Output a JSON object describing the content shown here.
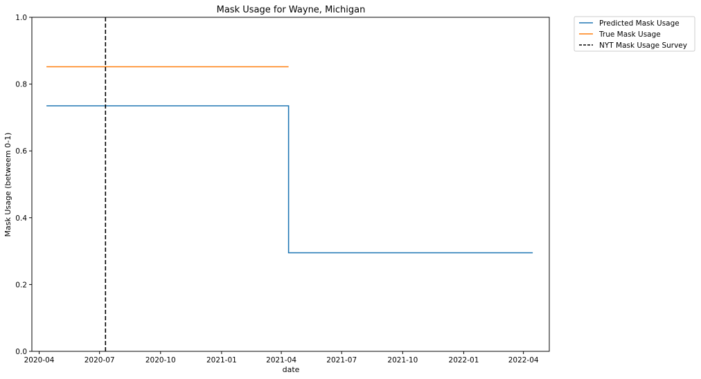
{
  "chart_data": {
    "type": "line",
    "title": "Mask Usage for Wayne, Michigan",
    "xlabel": "date",
    "ylabel": "Mask Usage (betweem 0-1)",
    "xlim": [
      "2020-03-21",
      "2022-05-10"
    ],
    "ylim": [
      0,
      1
    ],
    "x_ticks": [
      "2020-04",
      "2020-07",
      "2020-10",
      "2021-01",
      "2021-04",
      "2021-07",
      "2021-10",
      "2022-01",
      "2022-04"
    ],
    "y_ticks": [
      "0.0",
      "0.2",
      "0.4",
      "0.6",
      "0.8",
      "1.0"
    ],
    "grid": false,
    "legend_position": "outside-top-right",
    "series": [
      {
        "name": "Predicted Mask Usage",
        "color": "#1f77b4",
        "style": "solid",
        "points": [
          {
            "x": "2020-04-12",
            "y": 0.735
          },
          {
            "x": "2021-04-12",
            "y": 0.735
          },
          {
            "x": "2021-04-12",
            "y": 0.295
          },
          {
            "x": "2022-04-15",
            "y": 0.295
          }
        ]
      },
      {
        "name": "True Mask Usage",
        "color": "#ff7f0e",
        "style": "solid",
        "points": [
          {
            "x": "2020-04-12",
            "y": 0.852
          },
          {
            "x": "2021-04-12",
            "y": 0.852
          }
        ]
      },
      {
        "name": "NYT Mask Usage Survey",
        "color": "#000000",
        "style": "dashed",
        "vertical_x": "2020-07-10"
      }
    ]
  }
}
